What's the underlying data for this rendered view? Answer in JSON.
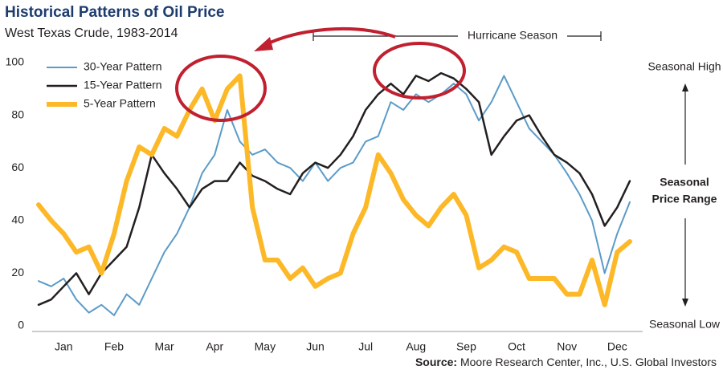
{
  "chart_data": {
    "type": "line",
    "title": "Historical Patterns of Oil Price",
    "subtitle": "West Texas Crude, 1983-2014",
    "categories": [
      null,
      null,
      "Jan",
      null,
      null,
      null,
      "Feb",
      null,
      null,
      null,
      "Mar",
      null,
      null,
      null,
      "Apr",
      null,
      null,
      null,
      "May",
      null,
      null,
      null,
      "Jun",
      null,
      null,
      null,
      "Jul",
      null,
      null,
      null,
      "Aug",
      null,
      null,
      null,
      "Sep",
      null,
      null,
      null,
      "Oct",
      null,
      null,
      null,
      "Nov",
      null,
      null,
      null,
      "Dec",
      null
    ],
    "series": [
      {
        "name": "30-Year Pattern",
        "color": "#5b9bc8",
        "values": [
          17,
          15,
          18,
          10,
          5,
          8,
          4,
          12,
          8,
          18,
          28,
          35,
          45,
          58,
          65,
          82,
          70,
          65,
          67,
          62,
          60,
          55,
          62,
          55,
          60,
          62,
          70,
          72,
          85,
          82,
          88,
          85,
          88,
          92,
          88,
          78,
          85,
          95,
          85,
          75,
          70,
          65,
          58,
          50,
          40,
          20,
          35,
          47
        ]
      },
      {
        "name": "15-Year Pattern",
        "color": "#231f20",
        "values": [
          8,
          10,
          15,
          20,
          12,
          20,
          25,
          30,
          45,
          65,
          58,
          52,
          45,
          52,
          55,
          55,
          62,
          57,
          55,
          52,
          50,
          58,
          62,
          60,
          65,
          72,
          82,
          88,
          92,
          88,
          95,
          93,
          96,
          94,
          90,
          85,
          65,
          72,
          78,
          80,
          72,
          65,
          62,
          58,
          50,
          38,
          45,
          55
        ]
      },
      {
        "name": "5-Year Pattern",
        "color": "#fdb827",
        "values": [
          46,
          40,
          35,
          28,
          30,
          20,
          35,
          55,
          68,
          65,
          75,
          72,
          82,
          90,
          78,
          90,
          95,
          45,
          25,
          25,
          18,
          22,
          15,
          18,
          20,
          35,
          45,
          65,
          58,
          48,
          42,
          38,
          45,
          50,
          42,
          22,
          25,
          30,
          28,
          18,
          18,
          18,
          12,
          12,
          25,
          8,
          28,
          32
        ]
      }
    ],
    "ylim": [
      0,
      100
    ],
    "yticks": [
      0,
      20,
      40,
      60,
      80,
      100
    ],
    "grid": false,
    "legend": "top-left",
    "annotations": {
      "hurricane": "Hurricane Season",
      "high": "Seasonal High",
      "range_top": "Seasonal",
      "range_bottom": "Price Range",
      "low": "Seasonal Low"
    },
    "source_label": "Source:",
    "source": "Moore Research Center, Inc., U.S. Global Investors"
  }
}
